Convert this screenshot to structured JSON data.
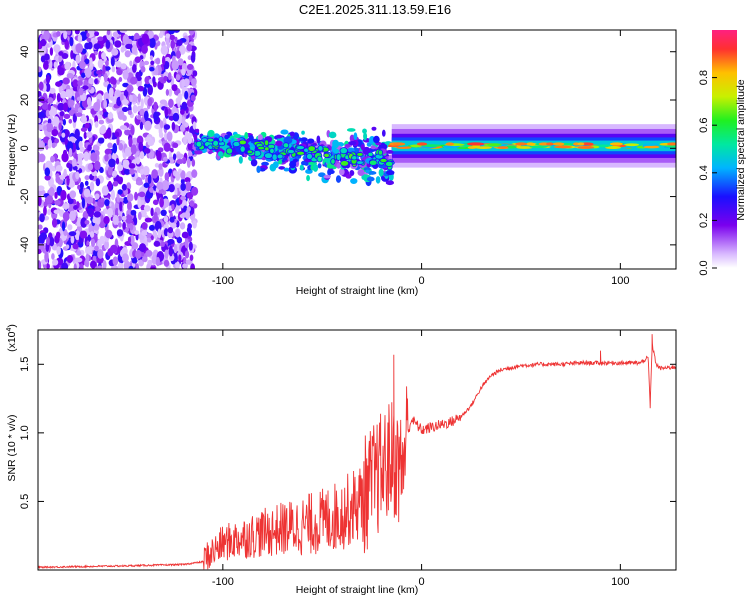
{
  "title": "C2E1.2025.311.13.59.E16",
  "chart_data": [
    {
      "type": "heatmap",
      "panel": "spectrogram",
      "xlabel": "Height of straight line (km)",
      "ylabel": "Frequency (Hz)",
      "xlim": [
        -193,
        128
      ],
      "ylim": [
        -50,
        49
      ],
      "x_ticks": [
        "-100",
        "0",
        "100"
      ],
      "x_tick_values": [
        -100,
        0,
        100
      ],
      "y_ticks": [
        "40",
        "20",
        "0",
        "-20",
        "-40"
      ],
      "y_tick_values": [
        40,
        20,
        0,
        -20,
        -40
      ],
      "colorbar": {
        "label": "Normalized spectral amplitude",
        "range": [
          0,
          1
        ],
        "ticks": [
          "0.0",
          "0.2",
          "0.4",
          "0.6",
          "0.8"
        ],
        "tick_values": [
          0.0,
          0.2,
          0.4,
          0.6,
          0.8
        ]
      },
      "regions": [
        {
          "name": "noise",
          "x_range": [
            -193,
            -114
          ],
          "freq_range": [
            -50,
            49
          ],
          "amplitude": [
            0.05,
            0.3
          ]
        },
        {
          "name": "scattered signal",
          "x_range": [
            -114,
            -15
          ],
          "freq_center": [
            2,
            -5
          ],
          "freq_spread": [
            4,
            10
          ],
          "amplitude": [
            0.1,
            0.55
          ]
        },
        {
          "name": "steady band",
          "x_range": [
            -15,
            128
          ],
          "freq_center": 1,
          "freq_spread": 2,
          "amplitude": [
            0.4,
            0.9
          ]
        }
      ]
    },
    {
      "type": "line",
      "panel": "snr",
      "xlabel": "Height of straight line (km)",
      "ylabel": "SNR (10 * v/v)",
      "y_scale_label": "(x10",
      "y_scale_exp": "4",
      "xlim": [
        -193,
        128
      ],
      "ylim": [
        0,
        1.75
      ],
      "x_ticks": [
        "-100",
        "0",
        "100"
      ],
      "x_tick_values": [
        -100,
        0,
        100
      ],
      "y_ticks": [
        "0.5",
        "1.0",
        "1.5"
      ],
      "y_tick_values": [
        0.5,
        1.0,
        1.5
      ],
      "color": "#ee3333",
      "series": [
        {
          "name": "SNR",
          "x": [
            -193,
            -150,
            -120,
            -110,
            -105,
            -100,
            -90,
            -80,
            -70,
            -60,
            -50,
            -40,
            -30,
            -25,
            -20,
            -15,
            -10,
            -7,
            -5,
            0,
            5,
            10,
            15,
            20,
            25,
            30,
            35,
            40,
            50,
            60,
            70,
            80,
            90,
            100,
            110,
            114,
            115,
            116,
            118,
            120,
            128
          ],
          "y": [
            0.02,
            0.03,
            0.04,
            0.06,
            0.12,
            0.18,
            0.22,
            0.25,
            0.28,
            0.3,
            0.33,
            0.38,
            0.48,
            0.58,
            0.68,
            0.78,
            0.68,
            1.0,
            1.1,
            1.02,
            1.04,
            1.06,
            1.08,
            1.12,
            1.2,
            1.33,
            1.42,
            1.46,
            1.49,
            1.5,
            1.5,
            1.51,
            1.51,
            1.51,
            1.51,
            1.55,
            1.2,
            1.65,
            1.5,
            1.47,
            1.48
          ]
        }
      ],
      "spikes": [
        {
          "x": -14,
          "y": 1.57
        },
        {
          "x": 90,
          "y": 1.6
        },
        {
          "x": 116,
          "y": 1.72
        },
        {
          "x": 115,
          "y": 1.18
        }
      ]
    }
  ]
}
